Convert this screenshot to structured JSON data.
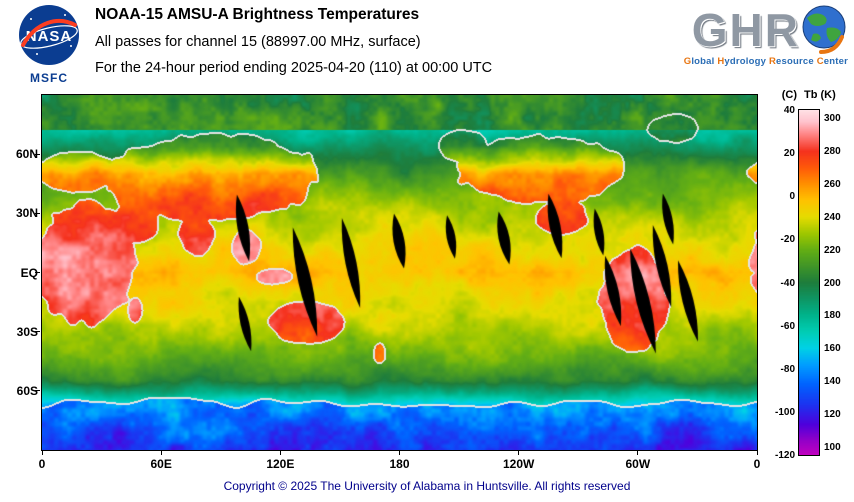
{
  "header": {
    "title": "NOAA-15 AMSU-A Brightness Temperatures",
    "subtitle": "All passes for channel 15 (88997.00 MHz, surface)",
    "period": "For the 24-hour period ending 2025-04-20 (110) at 00:00 UTC",
    "nasa": {
      "wordmark": "NASA",
      "center": "MSFC"
    },
    "ghrc": {
      "letters": "GHR",
      "tagline_words": [
        "Global",
        "Hydrology",
        "Resource",
        "Center"
      ]
    }
  },
  "axes": {
    "lat_ticks": [
      {
        "label": "60N",
        "lat": 60
      },
      {
        "label": "30N",
        "lat": 30
      },
      {
        "label": "EQ",
        "lat": 0
      },
      {
        "label": "30S",
        "lat": -30
      },
      {
        "label": "60S",
        "lat": -60
      }
    ],
    "lon_ticks": [
      {
        "label": "0",
        "lon": 0
      },
      {
        "label": "60E",
        "lon": 60
      },
      {
        "label": "120E",
        "lon": 120
      },
      {
        "label": "180",
        "lon": 180
      },
      {
        "label": "120W",
        "lon": 240
      },
      {
        "label": "60W",
        "lon": 300
      },
      {
        "label": "0",
        "lon": 360
      }
    ]
  },
  "colorbar": {
    "left_header": "(C)",
    "right_header": "Tb (K)",
    "celsius_labels": [
      40,
      20,
      0,
      -20,
      -40,
      -60,
      -80,
      -100,
      -120
    ],
    "kelvin_labels": [
      300,
      280,
      260,
      240,
      220,
      200,
      180,
      160,
      140,
      120,
      100
    ],
    "scale_top_k": 305,
    "scale_bottom_k": 95,
    "gradient_stops": [
      {
        "t": 95,
        "c": "#c000c0"
      },
      {
        "t": 103,
        "c": "#9600c8"
      },
      {
        "t": 113,
        "c": "#5000dc"
      },
      {
        "t": 125,
        "c": "#1e32f0"
      },
      {
        "t": 138,
        "c": "#0064ff"
      },
      {
        "t": 150,
        "c": "#00a0ff"
      },
      {
        "t": 160,
        "c": "#00d2e6"
      },
      {
        "t": 170,
        "c": "#00cdb4"
      },
      {
        "t": 180,
        "c": "#00b48c"
      },
      {
        "t": 190,
        "c": "#0f9664"
      },
      {
        "t": 200,
        "c": "#1e7d3c"
      },
      {
        "t": 210,
        "c": "#419628"
      },
      {
        "t": 220,
        "c": "#64af14"
      },
      {
        "t": 230,
        "c": "#a0c800"
      },
      {
        "t": 240,
        "c": "#e6dc00"
      },
      {
        "t": 250,
        "c": "#ffc300"
      },
      {
        "t": 260,
        "c": "#ff9100"
      },
      {
        "t": 270,
        "c": "#ff5a0a"
      },
      {
        "t": 280,
        "c": "#f5321e"
      },
      {
        "t": 290,
        "c": "#ff8282"
      },
      {
        "t": 298,
        "c": "#ffc3cd"
      },
      {
        "t": 305,
        "c": "#ffe1e6"
      }
    ]
  },
  "footer": {
    "copyright": "Copyright © 2025 The University of Alabama in Huntsville.  All rights reserved"
  },
  "chart_data": {
    "type": "heatmap",
    "title": "NOAA-15 AMSU-A Brightness Temperatures",
    "variable": "Brightness temperature Tb (K)",
    "channel": "15 (88997.00 MHz, surface)",
    "period": "24-hour period ending 2025-04-20 (110) at 00:00 UTC",
    "x_axis": {
      "ticks": [
        "0",
        "60E",
        "120E",
        "180",
        "120W",
        "60W",
        "0"
      ],
      "range_lon_deg": [
        0,
        360
      ]
    },
    "y_axis": {
      "ticks": [
        "60N",
        "30N",
        "EQ",
        "30S",
        "60S"
      ],
      "range_lat_deg": [
        -90,
        90
      ]
    },
    "colorbar_range_k": [
      100,
      300
    ],
    "colorbar_range_c": [
      -120,
      40
    ],
    "legend_position": "right",
    "notes_visible": "black slivers are gaps between satellite passes"
  }
}
